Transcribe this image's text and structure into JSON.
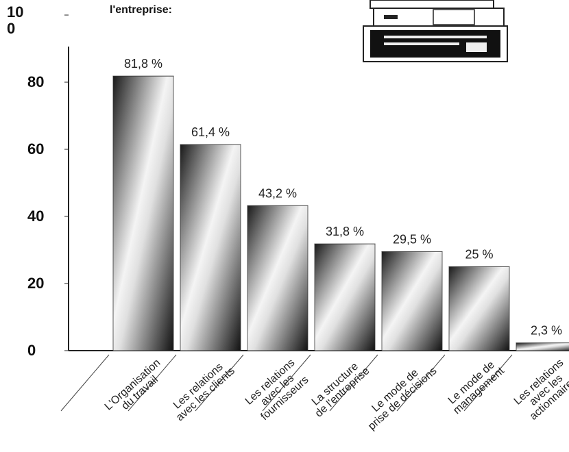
{
  "chart_data": {
    "type": "bar",
    "title": "l'entreprise:",
    "categories": [
      "L'Organisation\ndu travail",
      "Les relations\navec les clients",
      "Les relations\navec les\nfournisseurs",
      "La structure\nde l'entreprise",
      "Le mode de\nprise de décisions",
      "Le mode de\nmanagement",
      "Les relations\navec les\nactionnaires"
    ],
    "values": [
      81.8,
      61.4,
      43.2,
      31.8,
      29.5,
      25,
      2.3
    ],
    "value_labels": [
      "81,8 %",
      "61,4 %",
      "43,2 %",
      "31,8 %",
      "29,5 %",
      "25 %",
      "2,3 %"
    ],
    "ylim": [
      0,
      100
    ],
    "yticks": [
      0,
      20,
      40,
      60,
      80,
      100
    ],
    "grid": false,
    "color": "#888888"
  }
}
